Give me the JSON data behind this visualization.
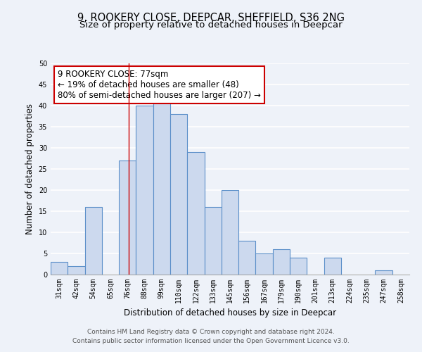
{
  "title": "9, ROOKERY CLOSE, DEEPCAR, SHEFFIELD, S36 2NG",
  "subtitle": "Size of property relative to detached houses in Deepcar",
  "xlabel": "Distribution of detached houses by size in Deepcar",
  "ylabel": "Number of detached properties",
  "bin_labels": [
    "31sqm",
    "42sqm",
    "54sqm",
    "65sqm",
    "76sqm",
    "88sqm",
    "99sqm",
    "110sqm",
    "122sqm",
    "133sqm",
    "145sqm",
    "156sqm",
    "167sqm",
    "179sqm",
    "190sqm",
    "201sqm",
    "213sqm",
    "224sqm",
    "235sqm",
    "247sqm",
    "258sqm"
  ],
  "bar_values": [
    3,
    2,
    16,
    0,
    27,
    40,
    41,
    38,
    29,
    16,
    20,
    8,
    5,
    6,
    4,
    0,
    4,
    0,
    0,
    1,
    0
  ],
  "bar_color": "#ccd9ee",
  "bar_edge_color": "#5b8fc9",
  "annotation_line1": "9 ROOKERY CLOSE: 77sqm",
  "annotation_line2": "← 19% of detached houses are smaller (48)",
  "annotation_line3": "80% of semi-detached houses are larger (207) →",
  "annotation_box_edge_color": "#cc0000",
  "annotation_box_face_color": "#ffffff",
  "property_line_x": 4.07,
  "property_line_color": "#cc0000",
  "ylim": [
    0,
    50
  ],
  "yticks": [
    0,
    5,
    10,
    15,
    20,
    25,
    30,
    35,
    40,
    45,
    50
  ],
  "footer_line1": "Contains HM Land Registry data © Crown copyright and database right 2024.",
  "footer_line2": "Contains public sector information licensed under the Open Government Licence v3.0.",
  "bg_color": "#eef2f9",
  "plot_bg_color": "#eef2f9",
  "grid_color": "#ffffff",
  "title_fontsize": 10.5,
  "subtitle_fontsize": 9.5,
  "axis_label_fontsize": 8.5,
  "tick_fontsize": 7,
  "footer_fontsize": 6.5,
  "annotation_fontsize": 8.5
}
